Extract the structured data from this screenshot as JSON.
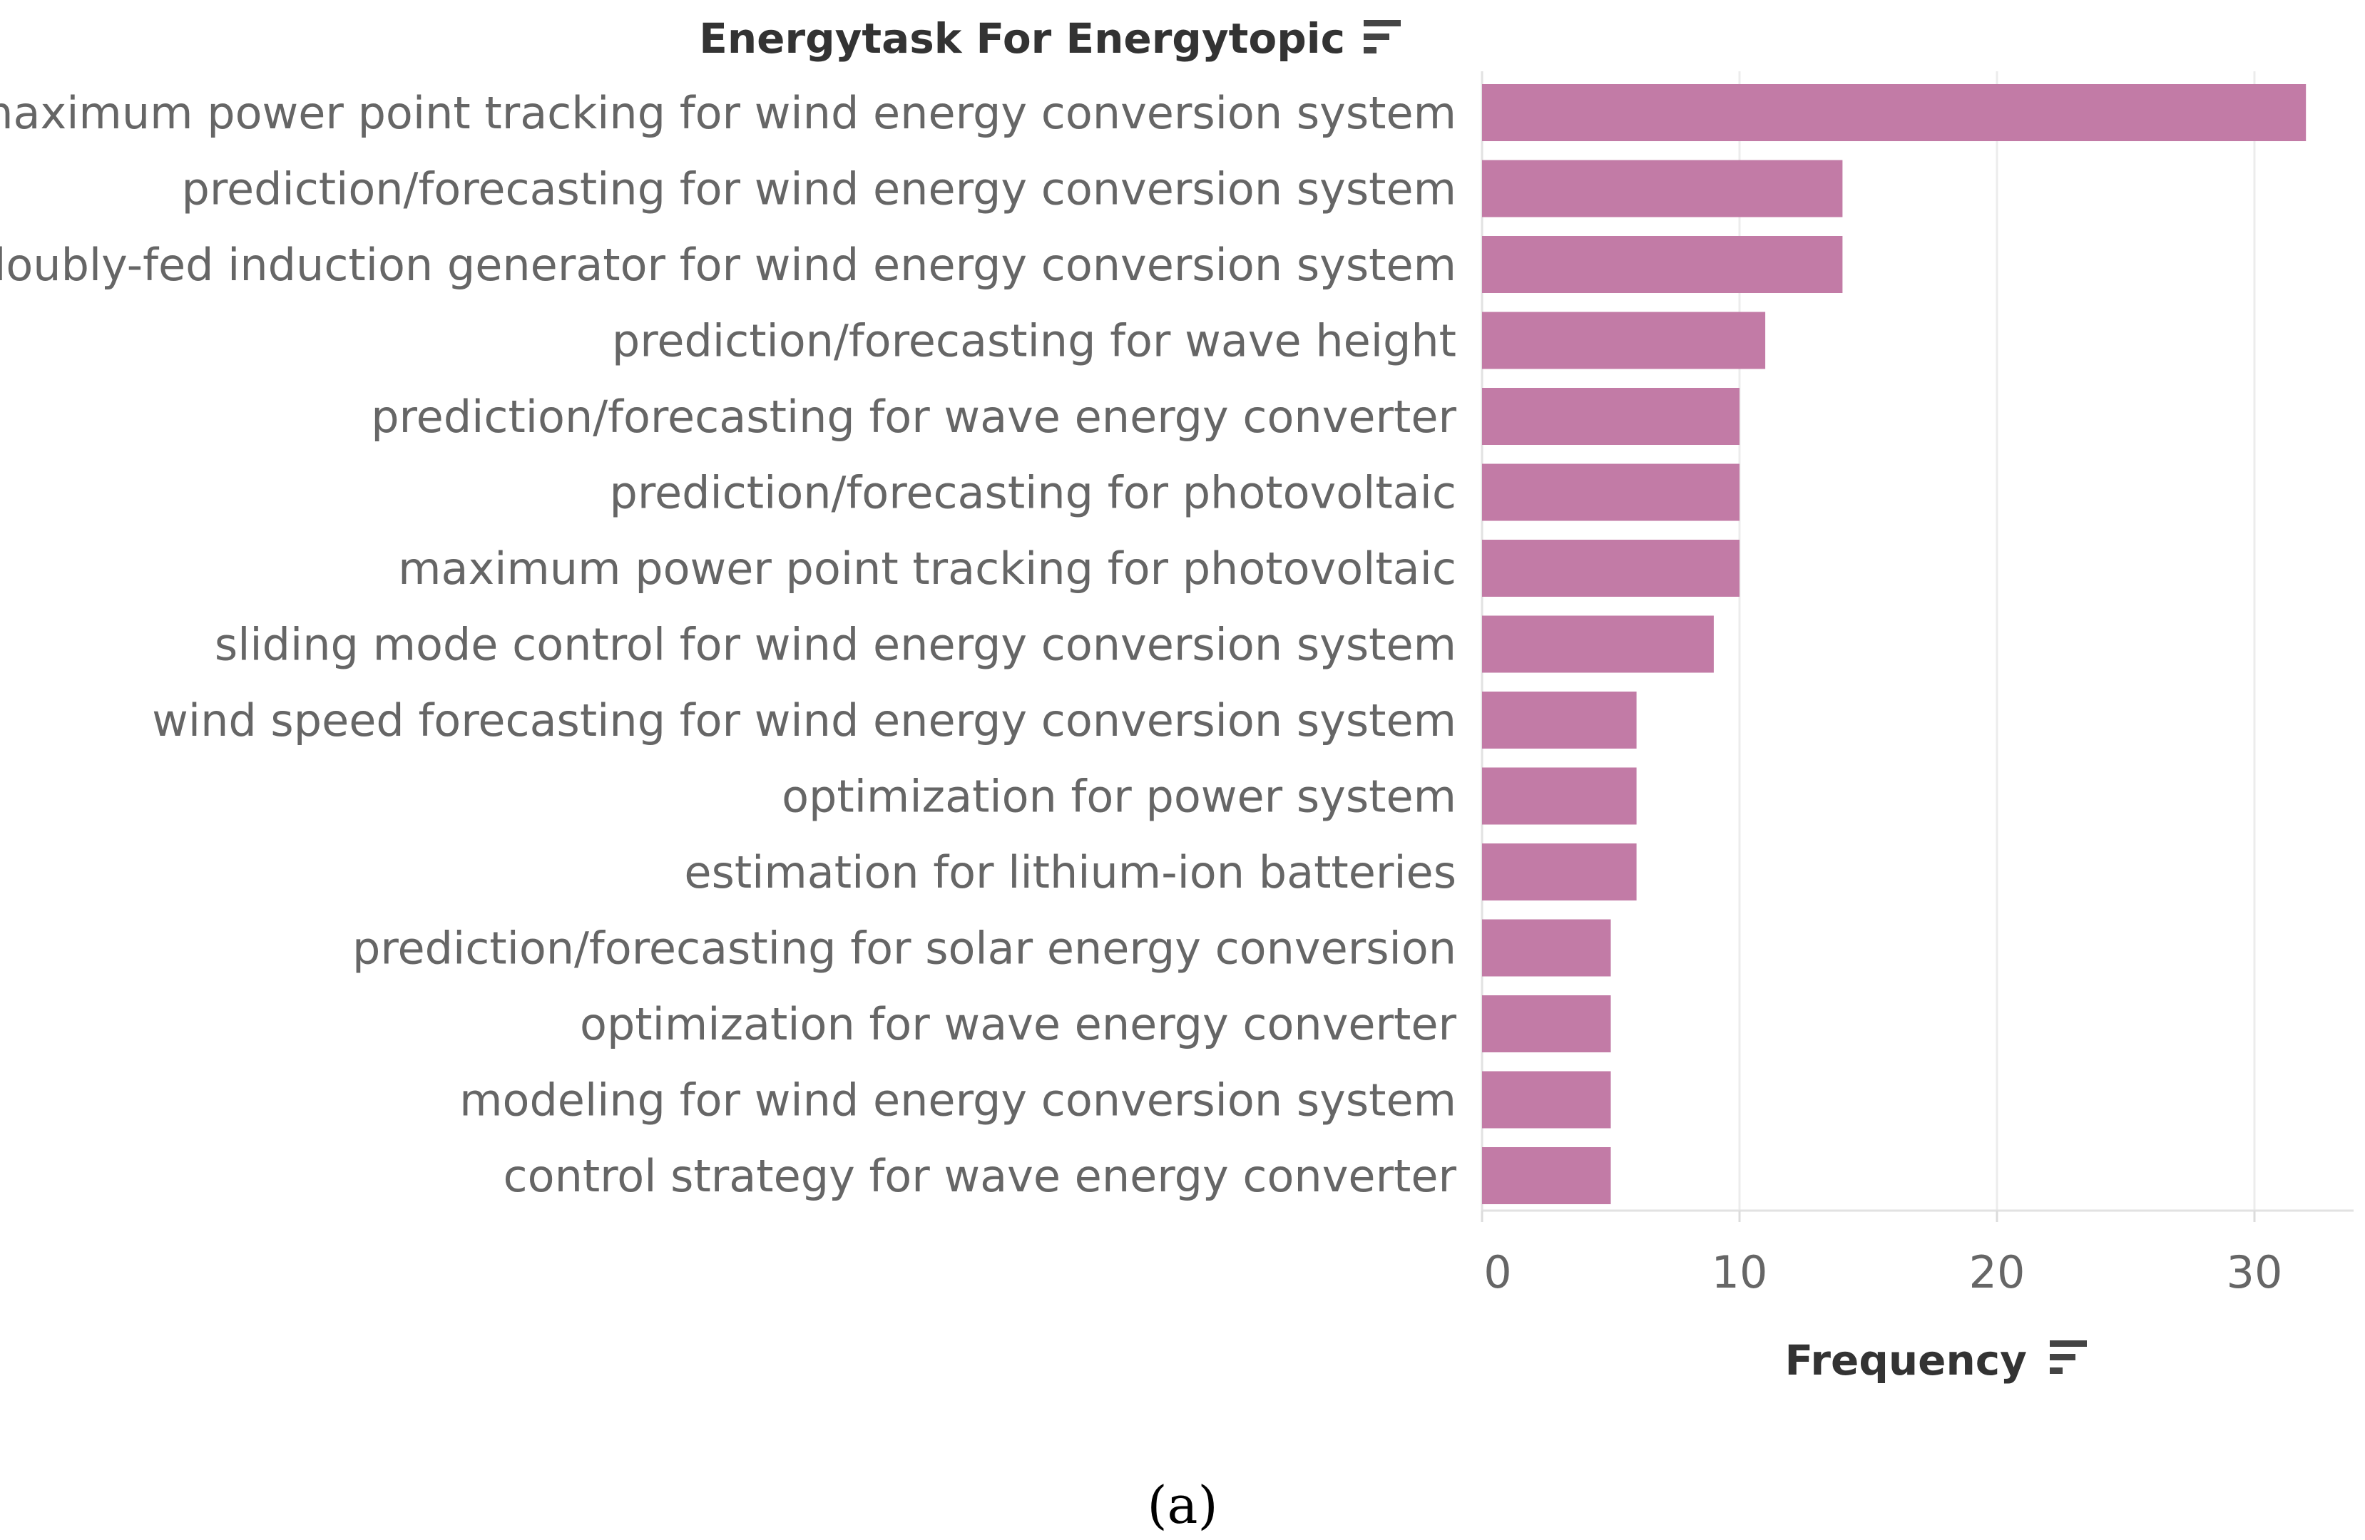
{
  "chart_data": {
    "type": "bar",
    "orientation": "horizontal",
    "title": "Energytask For Energytopic",
    "xlabel": "Frequency",
    "ylabel": "",
    "xlim": [
      0,
      32
    ],
    "xticks": [
      0,
      10,
      20,
      30
    ],
    "grid": true,
    "bar_color": "#c27ba6",
    "categories": [
      "maximum power point tracking for wind energy conversion system",
      "prediction/forecasting for wind energy conversion system",
      "doubly-fed induction generator for wind energy conversion system",
      "prediction/forecasting for wave height",
      "prediction/forecasting for wave energy converter",
      "prediction/forecasting for photovoltaic",
      "maximum power point tracking for photovoltaic",
      "sliding mode control for wind energy conversion system",
      "wind speed forecasting for wind energy conversion system",
      "optimization for power system",
      "estimation for lithium-ion batteries",
      "prediction/forecasting for solar energy conversion",
      "optimization for wave energy converter",
      "modeling for wind energy conversion system",
      "control strategy for wave energy converter"
    ],
    "values": [
      32,
      14,
      14,
      11,
      10,
      10,
      10,
      9,
      6,
      6,
      6,
      5,
      5,
      5,
      5
    ]
  },
  "caption": "(a)",
  "icons": {
    "title_sort": "sort-descending-icon",
    "axis_sort": "sort-descending-icon"
  }
}
